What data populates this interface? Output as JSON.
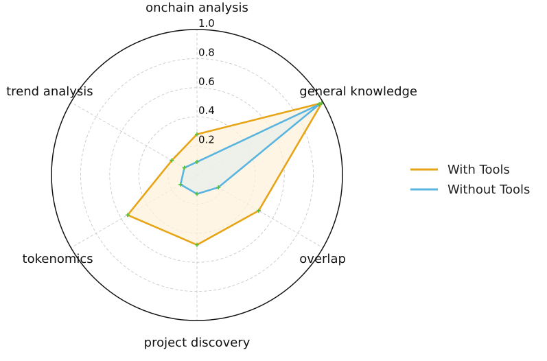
{
  "chart_data": {
    "type": "radar",
    "axes": [
      "onchain analysis",
      "general knowledge",
      "overlap",
      "project discovery",
      "tokenomics",
      "trend analysis"
    ],
    "rticks": [
      "0.2",
      "0.4",
      "0.6",
      "0.8",
      "1.0"
    ],
    "rlim": [
      0,
      1.0
    ],
    "grid": true,
    "legend_position": "right",
    "series": [
      {
        "name": "With Tools",
        "color": "#e6a416",
        "fill": "#fdf1dc",
        "values": [
          0.28,
          0.99,
          0.49,
          0.48,
          0.55,
          0.2
        ]
      },
      {
        "name": "Without Tools",
        "color": "#5ab4e0",
        "fill": "#e8efea",
        "values": [
          0.09,
          0.97,
          0.17,
          0.13,
          0.13,
          0.1
        ]
      }
    ]
  }
}
